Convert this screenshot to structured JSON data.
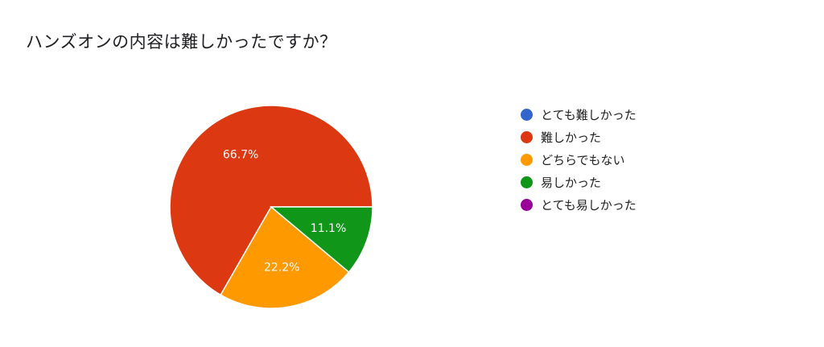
{
  "chart_data": {
    "type": "pie",
    "title": "ハンズオンの内容は難しかったですか？",
    "categories": [
      "とても難しかった",
      "難しかった",
      "どちらでもない",
      "易しかった",
      "とても易しかった"
    ],
    "values": [
      0,
      66.7,
      22.2,
      11.1,
      0
    ],
    "data_labels": [
      "",
      "66.7%",
      "22.2%",
      "11.1%",
      ""
    ],
    "colors": [
      "#3366cc",
      "#dc3912",
      "#ff9900",
      "#109618",
      "#990099"
    ],
    "legend_position": "right"
  }
}
